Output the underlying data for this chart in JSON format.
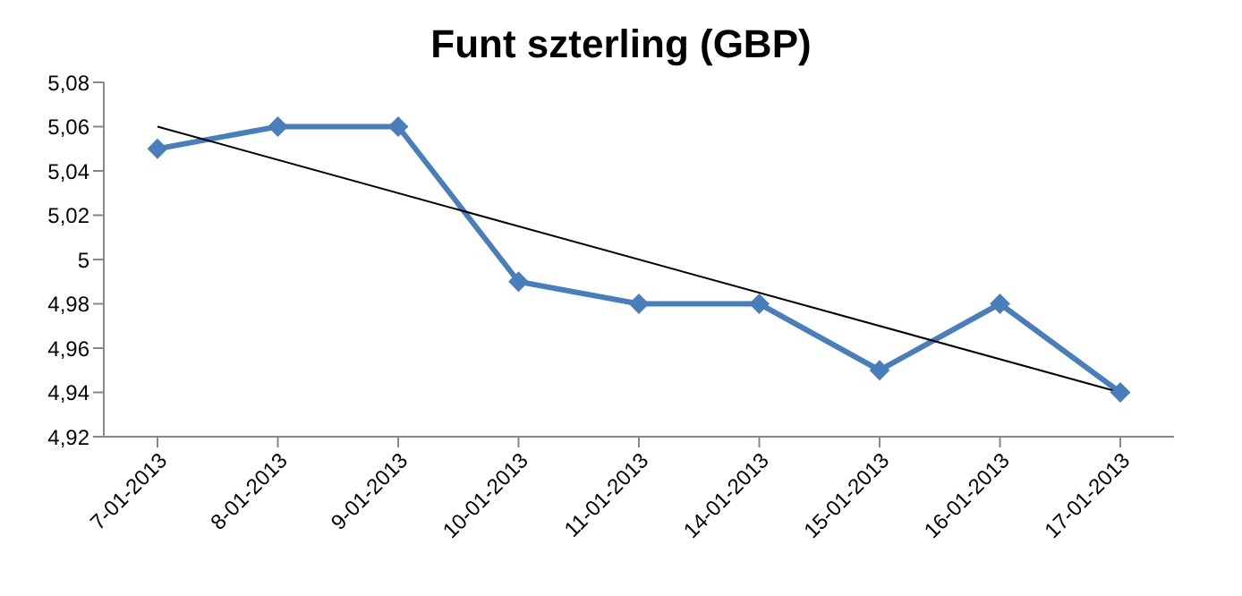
{
  "chart_data": {
    "type": "line",
    "title": "Funt szterling (GBP)",
    "categories": [
      "7-01-2013",
      "8-01-2013",
      "9-01-2013",
      "10-01-2013",
      "11-01-2013",
      "14-01-2013",
      "15-01-2013",
      "16-01-2013",
      "17-01-2013"
    ],
    "series": [
      {
        "color": "#4a7ebb",
        "marker": "diamond",
        "values": [
          5.05,
          5.06,
          5.06,
          4.99,
          4.98,
          4.98,
          4.95,
          4.98,
          4.94
        ]
      },
      {
        "type": "line",
        "color": "#000000",
        "marker": "none",
        "x": [
          "7-01-2013",
          "17-01-2013"
        ],
        "values": [
          5.06,
          4.94
        ]
      }
    ],
    "ylim": [
      4.92,
      5.08
    ],
    "yticks": [
      {
        "value": 4.92,
        "label": "4,92"
      },
      {
        "value": 4.94,
        "label": "4,94"
      },
      {
        "value": 4.96,
        "label": "4,96"
      },
      {
        "value": 4.98,
        "label": "4,98"
      },
      5,
      {
        "value": 5.02,
        "label": "5,02"
      },
      {
        "value": 5.04,
        "label": "5,04"
      },
      {
        "value": 5.06,
        "label": "5,06"
      },
      {
        "value": 5.08,
        "label": "5,08"
      }
    ],
    "grid": false
  }
}
